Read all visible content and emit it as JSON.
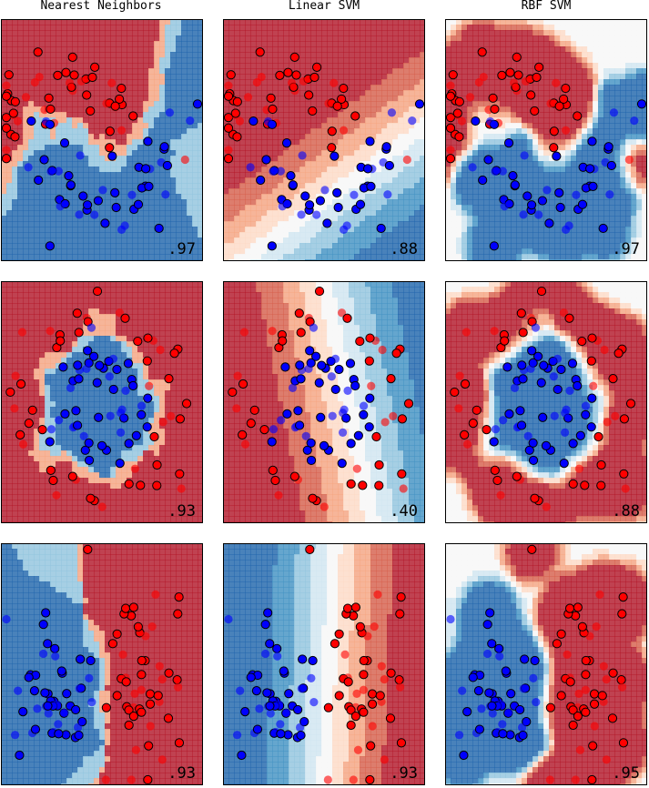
{
  "figure": {
    "column_titles": [
      "Nearest Neighbors",
      "Linear SVM",
      "RBF SVM"
    ]
  },
  "colors": {
    "class0": "#ff0000",
    "class1": "#0000ff",
    "cmap_RdBu": [
      "#67001f",
      "#b2182b",
      "#d6604d",
      "#f4a582",
      "#fddbc7",
      "#f7f7f7",
      "#d1e5f0",
      "#92c5de",
      "#4393c3",
      "#2166ac",
      "#053061"
    ]
  },
  "chart_data": [
    {
      "type": "scatter",
      "dataset": "moons",
      "classifier": "Nearest Neighbors",
      "score": ".97",
      "decision_surface": "filled-contour",
      "xlim": [
        -2,
        3
      ],
      "ylim": [
        -1.5,
        2
      ],
      "grid": false,
      "ticks": false
    },
    {
      "type": "scatter",
      "dataset": "moons",
      "classifier": "Linear SVM",
      "score": ".88",
      "decision_surface": "filled-contour",
      "xlim": [
        -2,
        3
      ],
      "ylim": [
        -1.5,
        2
      ],
      "grid": false,
      "ticks": false
    },
    {
      "type": "scatter",
      "dataset": "moons",
      "classifier": "RBF SVM",
      "score": ".97",
      "decision_surface": "filled-contour",
      "xlim": [
        -2,
        3
      ],
      "ylim": [
        -1.5,
        2
      ],
      "grid": false,
      "ticks": false
    },
    {
      "type": "scatter",
      "dataset": "circles",
      "classifier": "Nearest Neighbors",
      "score": ".93",
      "decision_surface": "filled-contour",
      "xlim": [
        -1.5,
        1.5
      ],
      "ylim": [
        -1.5,
        1.5
      ],
      "grid": false,
      "ticks": false
    },
    {
      "type": "scatter",
      "dataset": "circles",
      "classifier": "Linear SVM",
      "score": ".40",
      "decision_surface": "filled-contour",
      "xlim": [
        -1.5,
        1.5
      ],
      "ylim": [
        -1.5,
        1.5
      ],
      "grid": false,
      "ticks": false
    },
    {
      "type": "scatter",
      "dataset": "circles",
      "classifier": "RBF SVM",
      "score": ".88",
      "decision_surface": "filled-contour",
      "xlim": [
        -1.5,
        1.5
      ],
      "ylim": [
        -1.5,
        1.5
      ],
      "grid": false,
      "ticks": false
    },
    {
      "type": "scatter",
      "dataset": "linearly_separable",
      "classifier": "Nearest Neighbors",
      "score": ".93",
      "decision_surface": "filled-contour",
      "xlim": [
        -3,
        4
      ],
      "ylim": [
        -3,
        4
      ],
      "grid": false,
      "ticks": false
    },
    {
      "type": "scatter",
      "dataset": "linearly_separable",
      "classifier": "Linear SVM",
      "score": ".93",
      "decision_surface": "filled-contour",
      "xlim": [
        -3,
        4
      ],
      "ylim": [
        -3,
        4
      ],
      "grid": false,
      "ticks": false
    },
    {
      "type": "scatter",
      "dataset": "linearly_separable",
      "classifier": "RBF SVM",
      "score": ".95",
      "decision_surface": "filled-contour",
      "xlim": [
        -3,
        4
      ],
      "ylim": [
        -3,
        4
      ],
      "grid": false,
      "ticks": false
    }
  ]
}
